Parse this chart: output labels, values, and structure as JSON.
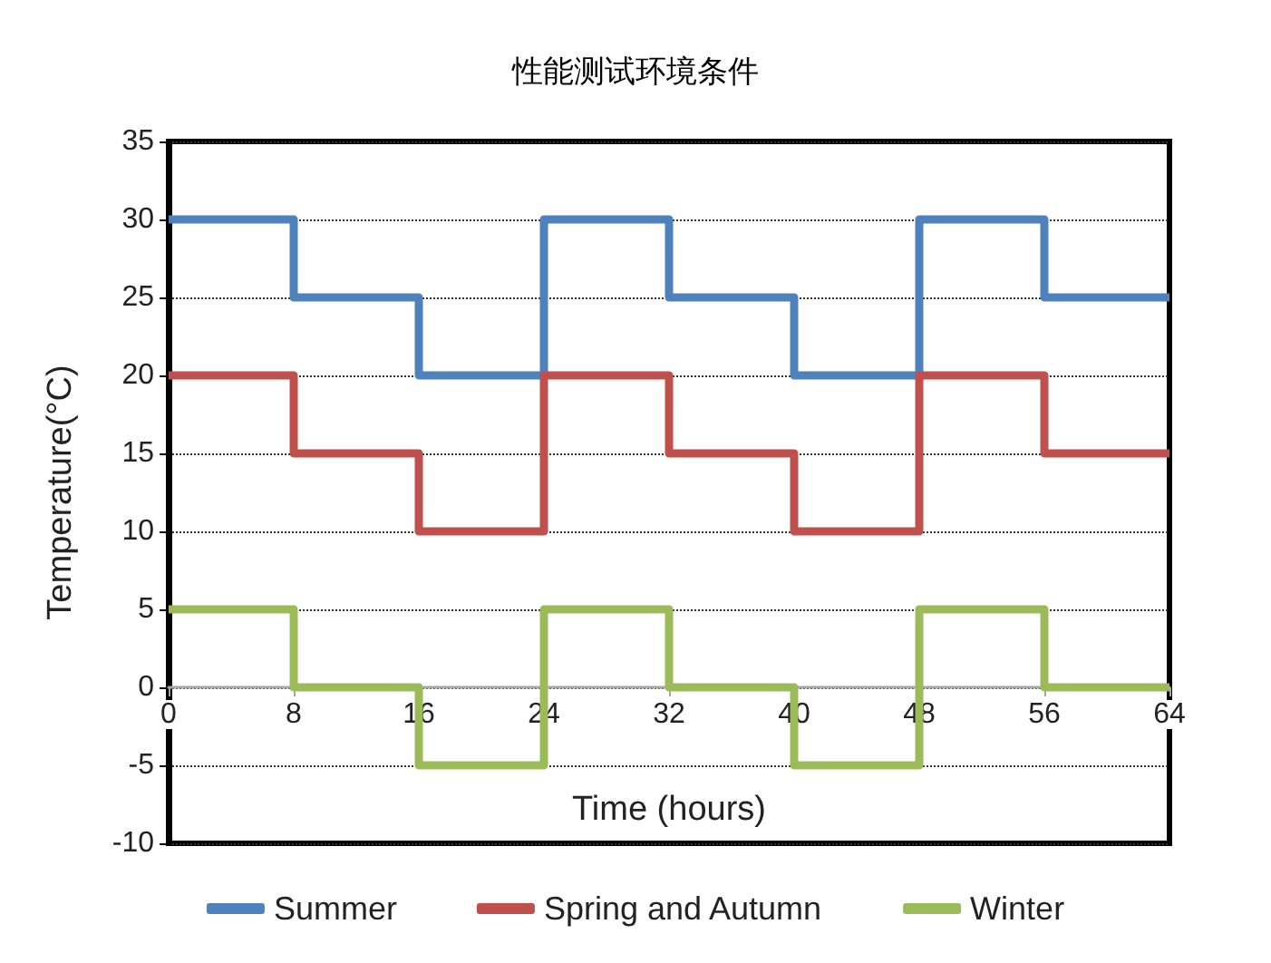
{
  "chart_data": {
    "type": "step",
    "title": "性能测试环境条件",
    "xlabel": "Time (hours)",
    "ylabel": "Temperature(°C)",
    "x": [
      0,
      8,
      16,
      24,
      32,
      40,
      48,
      56,
      64
    ],
    "series": [
      {
        "name": "Summer",
        "color": "#4f81bd",
        "values": [
          30,
          25,
          20,
          30,
          25,
          20,
          30,
          25,
          25
        ]
      },
      {
        "name": "Spring and Autumn",
        "color": "#c0504d",
        "values": [
          20,
          15,
          10,
          20,
          15,
          10,
          20,
          15,
          15
        ]
      },
      {
        "name": "Winter",
        "color": "#9bbb59",
        "values": [
          5,
          0,
          -5,
          5,
          0,
          -5,
          5,
          0,
          0
        ]
      }
    ],
    "xlim": [
      0,
      64
    ],
    "xticks": [
      0,
      8,
      16,
      24,
      32,
      40,
      48,
      56,
      64
    ],
    "ylim": [
      -10,
      35
    ],
    "yticks": [
      -10,
      -5,
      0,
      5,
      10,
      15,
      20,
      25,
      30,
      35
    ],
    "grid": "y",
    "legend": "bottom",
    "marker": "none",
    "line_style": "solid"
  }
}
